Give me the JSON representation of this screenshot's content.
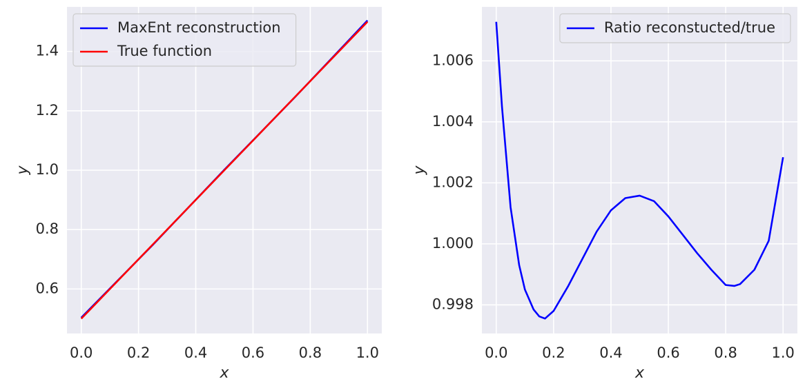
{
  "chart_data": [
    {
      "type": "line",
      "xlabel": "x",
      "ylabel": "y",
      "x": [
        0,
        0.25,
        0.5,
        0.75,
        1
      ],
      "series": [
        {
          "name": "MaxEnt reconstruction",
          "color": "#0000ff",
          "values": [
            0.5036,
            0.7487,
            1.0016,
            1.2494,
            1.5043
          ]
        },
        {
          "name": "True function",
          "color": "#ff0000",
          "values": [
            0.5,
            0.75,
            1.0,
            1.25,
            1.5
          ]
        }
      ],
      "xlim": [
        -0.05,
        1.05
      ],
      "ylim": [
        0.45,
        1.55
      ],
      "xticks": [
        {
          "value": 0,
          "label": "0.0"
        },
        0.2,
        0.4,
        0.6,
        0.8,
        {
          "value": 1,
          "label": "1.0"
        }
      ],
      "yticks": [
        0.6,
        0.8,
        {
          "value": 1,
          "label": "1.0"
        },
        1.2,
        1.4
      ],
      "grid": true,
      "legend": "upper-left"
    },
    {
      "type": "line",
      "xlabel": "x",
      "ylabel": "y",
      "x": [
        0,
        0.02,
        0.05,
        0.08,
        0.1,
        0.13,
        0.15,
        0.17,
        0.2,
        0.25,
        0.3,
        0.35,
        0.4,
        0.45,
        0.5,
        0.55,
        0.6,
        0.65,
        0.7,
        0.75,
        0.8,
        0.83,
        0.85,
        0.9,
        0.95,
        1.0
      ],
      "series": [
        {
          "name": "Ratio reconstucted/true",
          "color": "#0000ff",
          "values": [
            1.00728,
            1.0045,
            1.0012,
            0.9993,
            0.9985,
            0.99785,
            0.99762,
            0.99755,
            0.9978,
            0.9986,
            0.9995,
            1.0004,
            1.0011,
            1.0015,
            1.00158,
            1.0014,
            1.0009,
            1.0003,
            0.9997,
            0.99915,
            0.99865,
            0.99862,
            0.99868,
            0.99915,
            1.0001,
            1.00284
          ]
        }
      ],
      "xlim": [
        -0.05,
        1.05
      ],
      "ylim": [
        0.99706,
        1.00777
      ],
      "xticks": [
        {
          "value": 0,
          "label": "0.0"
        },
        0.2,
        0.4,
        0.6,
        0.8,
        {
          "value": 1,
          "label": "1.0"
        }
      ],
      "yticks": [
        0.998,
        {
          "value": 1,
          "label": "1.000"
        },
        1.002,
        1.004,
        1.006
      ],
      "grid": true,
      "legend": "upper-right"
    }
  ]
}
